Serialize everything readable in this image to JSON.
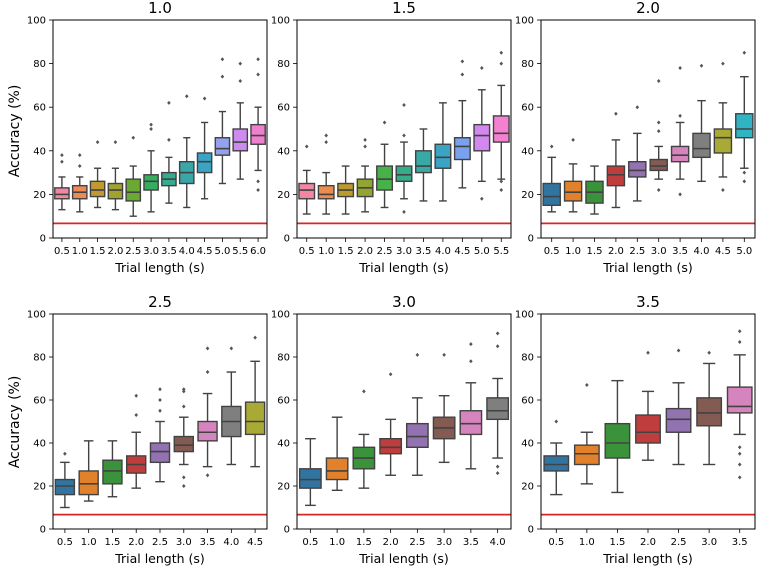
{
  "figure": {
    "ylabel": "Accuracy (%)",
    "xlabel": "Trial length (s)"
  },
  "chart_data": [
    {
      "type": "box",
      "title": "1.0",
      "xlabel": "Trial length (s)",
      "ylabel": "Accuracy (%)",
      "ylim": [
        0,
        100
      ],
      "yticks": [
        "0",
        "20",
        "40",
        "60",
        "80",
        "100"
      ],
      "chance_level": 6.7,
      "categories": [
        "0.5",
        "1.0",
        "1.5",
        "2.0",
        "2.5",
        "3.0",
        "3.5",
        "4.0",
        "4.5",
        "5.0",
        "5.5",
        "6.0"
      ],
      "boxes": [
        {
          "whislo": 13,
          "q1": 18,
          "med": 20,
          "q3": 23,
          "whishi": 28,
          "fliers": [
            35,
            38
          ]
        },
        {
          "whislo": 12,
          "q1": 18,
          "med": 21,
          "q3": 24,
          "whishi": 28,
          "fliers": [
            33,
            38
          ]
        },
        {
          "whislo": 14,
          "q1": 19,
          "med": 22,
          "q3": 26,
          "whishi": 32,
          "fliers": [
            44
          ]
        },
        {
          "whislo": 13,
          "q1": 18,
          "med": 22,
          "q3": 25,
          "whishi": 32,
          "fliers": [
            44
          ]
        },
        {
          "whislo": 10,
          "q1": 17,
          "med": 21,
          "q3": 27,
          "whishi": 33,
          "fliers": [
            46
          ]
        },
        {
          "whislo": 12,
          "q1": 22,
          "med": 26,
          "q3": 29,
          "whishi": 40,
          "fliers": [
            50,
            52
          ]
        },
        {
          "whislo": 16,
          "q1": 24,
          "med": 27,
          "q3": 30,
          "whishi": 37,
          "fliers": [
            45,
            62
          ]
        },
        {
          "whislo": 14,
          "q1": 25,
          "med": 30,
          "q3": 35,
          "whishi": 46,
          "fliers": [
            65
          ]
        },
        {
          "whislo": 18,
          "q1": 30,
          "med": 35,
          "q3": 39,
          "whishi": 53,
          "fliers": [
            64
          ]
        },
        {
          "whislo": 25,
          "q1": 38,
          "med": 41,
          "q3": 46,
          "whishi": 58,
          "fliers": [
            74,
            82
          ]
        },
        {
          "whislo": 27,
          "q1": 40,
          "med": 44,
          "q3": 50,
          "whishi": 62,
          "fliers": [
            72,
            80
          ]
        },
        {
          "whislo": 31,
          "q1": 43,
          "med": 47,
          "q3": 52,
          "whishi": 60,
          "fliers": [
            22,
            26,
            75,
            82
          ]
        }
      ]
    },
    {
      "type": "box",
      "title": "1.5",
      "xlabel": "Trial length (s)",
      "ylabel": "",
      "ylim": [
        0,
        100
      ],
      "yticks": [
        "0",
        "20",
        "40",
        "60",
        "80",
        "100"
      ],
      "chance_level": 6.7,
      "categories": [
        "0.5",
        "1.0",
        "1.5",
        "2.0",
        "2.5",
        "3.0",
        "3.5",
        "4.0",
        "4.5",
        "5.0",
        "5.5"
      ],
      "boxes": [
        {
          "whislo": 11,
          "q1": 18,
          "med": 22,
          "q3": 25,
          "whishi": 31,
          "fliers": [
            42
          ]
        },
        {
          "whislo": 11,
          "q1": 18,
          "med": 20,
          "q3": 24,
          "whishi": 30,
          "fliers": [
            44,
            47
          ]
        },
        {
          "whislo": 11,
          "q1": 19,
          "med": 22,
          "q3": 25,
          "whishi": 33,
          "fliers": []
        },
        {
          "whislo": 12,
          "q1": 19,
          "med": 23,
          "q3": 27,
          "whishi": 33,
          "fliers": [
            42,
            45
          ]
        },
        {
          "whislo": 14,
          "q1": 22,
          "med": 27,
          "q3": 33,
          "whishi": 43,
          "fliers": [
            53
          ]
        },
        {
          "whislo": 18,
          "q1": 26,
          "med": 29,
          "q3": 33,
          "whishi": 44,
          "fliers": [
            12,
            47,
            61
          ]
        },
        {
          "whislo": 17,
          "q1": 30,
          "med": 33,
          "q3": 40,
          "whishi": 50,
          "fliers": []
        },
        {
          "whislo": 17,
          "q1": 32,
          "med": 37,
          "q3": 43,
          "whishi": 62,
          "fliers": []
        },
        {
          "whislo": 23,
          "q1": 36,
          "med": 42,
          "q3": 46,
          "whishi": 63,
          "fliers": [
            75,
            81
          ]
        },
        {
          "whislo": 26,
          "q1": 40,
          "med": 47,
          "q3": 52,
          "whishi": 68,
          "fliers": [
            18,
            78
          ]
        },
        {
          "whislo": 27,
          "q1": 44,
          "med": 48,
          "q3": 56,
          "whishi": 70,
          "fliers": [
            22,
            26,
            80,
            85
          ]
        }
      ]
    },
    {
      "type": "box",
      "title": "2.0",
      "xlabel": "Trial length (s)",
      "ylabel": "",
      "ylim": [
        0,
        100
      ],
      "yticks": [
        "0",
        "20",
        "40",
        "60",
        "80",
        "100"
      ],
      "chance_level": 6.7,
      "categories": [
        "0.5",
        "1.0",
        "1.5",
        "2.0",
        "2.5",
        "3.0",
        "3.5",
        "4.0",
        "4.5",
        "5.0"
      ],
      "boxes": [
        {
          "whislo": 12,
          "q1": 15,
          "med": 19,
          "q3": 25,
          "whishi": 37,
          "fliers": [
            42
          ]
        },
        {
          "whislo": 12,
          "q1": 17,
          "med": 21,
          "q3": 26,
          "whishi": 34,
          "fliers": [
            45
          ]
        },
        {
          "whislo": 11,
          "q1": 16,
          "med": 21,
          "q3": 26,
          "whishi": 33,
          "fliers": []
        },
        {
          "whislo": 14,
          "q1": 24,
          "med": 29,
          "q3": 33,
          "whishi": 45,
          "fliers": [
            57
          ]
        },
        {
          "whislo": 17,
          "q1": 28,
          "med": 31,
          "q3": 35,
          "whishi": 48,
          "fliers": [
            60
          ]
        },
        {
          "whislo": 27,
          "q1": 31,
          "med": 33,
          "q3": 36,
          "whishi": 42,
          "fliers": [
            22,
            49,
            53,
            72
          ]
        },
        {
          "whislo": 27,
          "q1": 35,
          "med": 38,
          "q3": 42,
          "whishi": 53,
          "fliers": [
            20,
            56,
            78
          ]
        },
        {
          "whislo": 26,
          "q1": 37,
          "med": 41,
          "q3": 48,
          "whishi": 63,
          "fliers": [
            79
          ]
        },
        {
          "whislo": 28,
          "q1": 39,
          "med": 46,
          "q3": 50,
          "whishi": 62,
          "fliers": [
            22,
            80
          ]
        },
        {
          "whislo": 32,
          "q1": 46,
          "med": 50,
          "q3": 57,
          "whishi": 74,
          "fliers": [
            26,
            30,
            85
          ]
        }
      ]
    },
    {
      "type": "box",
      "title": "2.5",
      "xlabel": "Trial length (s)",
      "ylabel": "Accuracy (%)",
      "ylim": [
        0,
        100
      ],
      "yticks": [
        "0",
        "20",
        "40",
        "60",
        "80",
        "100"
      ],
      "chance_level": 6.7,
      "categories": [
        "0.5",
        "1.0",
        "1.5",
        "2.0",
        "2.5",
        "3.0",
        "3.5",
        "4.0",
        "4.5"
      ],
      "boxes": [
        {
          "whislo": 10,
          "q1": 16,
          "med": 20,
          "q3": 23,
          "whishi": 31,
          "fliers": [
            35
          ]
        },
        {
          "whislo": 13,
          "q1": 16,
          "med": 21,
          "q3": 27,
          "whishi": 41,
          "fliers": []
        },
        {
          "whislo": 15,
          "q1": 21,
          "med": 27,
          "q3": 32,
          "whishi": 41,
          "fliers": []
        },
        {
          "whislo": 19,
          "q1": 26,
          "med": 30,
          "q3": 34,
          "whishi": 45,
          "fliers": [
            53,
            62
          ]
        },
        {
          "whislo": 22,
          "q1": 31,
          "med": 36,
          "q3": 40,
          "whishi": 50,
          "fliers": [
            55,
            60,
            65
          ]
        },
        {
          "whislo": 30,
          "q1": 36,
          "med": 39,
          "q3": 43,
          "whishi": 52,
          "fliers": [
            20,
            24,
            57,
            64,
            65
          ]
        },
        {
          "whislo": 29,
          "q1": 41,
          "med": 45,
          "q3": 50,
          "whishi": 63,
          "fliers": [
            25,
            73,
            84
          ]
        },
        {
          "whislo": 30,
          "q1": 43,
          "med": 50,
          "q3": 57,
          "whishi": 73,
          "fliers": [
            84
          ]
        },
        {
          "whislo": 29,
          "q1": 44,
          "med": 50,
          "q3": 59,
          "whishi": 78,
          "fliers": [
            89
          ]
        }
      ]
    },
    {
      "type": "box",
      "title": "3.0",
      "xlabel": "Trial length (s)",
      "ylabel": "",
      "ylim": [
        0,
        100
      ],
      "yticks": [
        "0",
        "20",
        "40",
        "60",
        "80",
        "100"
      ],
      "chance_level": 6.7,
      "categories": [
        "0.5",
        "1.0",
        "1.5",
        "2.0",
        "2.5",
        "3.0",
        "3.5",
        "4.0"
      ],
      "boxes": [
        {
          "whislo": 11,
          "q1": 19,
          "med": 23,
          "q3": 28,
          "whishi": 42,
          "fliers": []
        },
        {
          "whislo": 18,
          "q1": 23,
          "med": 27,
          "q3": 33,
          "whishi": 52,
          "fliers": []
        },
        {
          "whislo": 19,
          "q1": 28,
          "med": 33,
          "q3": 38,
          "whishi": 44,
          "fliers": [
            64
          ]
        },
        {
          "whislo": 25,
          "q1": 35,
          "med": 38,
          "q3": 42,
          "whishi": 51,
          "fliers": [
            72
          ]
        },
        {
          "whislo": 25,
          "q1": 38,
          "med": 43,
          "q3": 49,
          "whishi": 61,
          "fliers": [
            81
          ]
        },
        {
          "whislo": 31,
          "q1": 42,
          "med": 47,
          "q3": 52,
          "whishi": 62,
          "fliers": [
            81
          ]
        },
        {
          "whislo": 28,
          "q1": 44,
          "med": 49,
          "q3": 55,
          "whishi": 68,
          "fliers": [
            78,
            86
          ]
        },
        {
          "whislo": 33,
          "q1": 51,
          "med": 55,
          "q3": 61,
          "whishi": 70,
          "fliers": [
            26,
            29,
            85,
            91
          ]
        }
      ]
    },
    {
      "type": "box",
      "title": "3.5",
      "xlabel": "Trial length (s)",
      "ylabel": "",
      "ylim": [
        0,
        100
      ],
      "yticks": [
        "0",
        "20",
        "40",
        "60",
        "80",
        "100"
      ],
      "chance_level": 6.7,
      "categories": [
        "0.5",
        "1.0",
        "1.5",
        "2.0",
        "2.5",
        "3.0",
        "3.5"
      ],
      "boxes": [
        {
          "whislo": 16,
          "q1": 27,
          "med": 30,
          "q3": 34,
          "whishi": 40,
          "fliers": [
            50
          ]
        },
        {
          "whislo": 21,
          "q1": 30,
          "med": 35,
          "q3": 39,
          "whishi": 45,
          "fliers": [
            67
          ]
        },
        {
          "whislo": 17,
          "q1": 33,
          "med": 40,
          "q3": 49,
          "whishi": 69,
          "fliers": []
        },
        {
          "whislo": 32,
          "q1": 40,
          "med": 45,
          "q3": 53,
          "whishi": 64,
          "fliers": [
            82
          ]
        },
        {
          "whislo": 30,
          "q1": 45,
          "med": 51,
          "q3": 56,
          "whishi": 68,
          "fliers": [
            83
          ]
        },
        {
          "whislo": 30,
          "q1": 48,
          "med": 54,
          "q3": 61,
          "whishi": 77,
          "fliers": [
            82
          ]
        },
        {
          "whislo": 44,
          "q1": 54,
          "med": 57,
          "q3": 66,
          "whishi": 81,
          "fliers": [
            24,
            30,
            35,
            38,
            87,
            92
          ]
        }
      ]
    }
  ],
  "colors": {
    "palette_12": [
      "#f187a3",
      "#ee8b55",
      "#c09a31",
      "#a0a232",
      "#6aaa34",
      "#36ae5f",
      "#38aa8e",
      "#39a7a7",
      "#3ba3c3",
      "#94a1ed",
      "#cb8cee",
      "#ee80cd"
    ],
    "palette_11": [
      "#f187a3",
      "#ec8c4d",
      "#bc9b2e",
      "#94a431",
      "#47b14a",
      "#36ad8a",
      "#38a9a5",
      "#3ba3c4",
      "#79a1ee",
      "#d288ee",
      "#f480d1"
    ],
    "palette_10": [
      "#3274a1",
      "#e1812c",
      "#3a923a",
      "#c03d3e",
      "#9372b2",
      "#845b53",
      "#d684bd",
      "#7f7f7f",
      "#a9aa35",
      "#2eb4c3"
    ],
    "palette_9": [
      "#3274a1",
      "#e1812c",
      "#3a923a",
      "#c03d3e",
      "#9372b2",
      "#845b53",
      "#d684bd",
      "#7f7f7f",
      "#a9aa35"
    ],
    "palette_8": [
      "#3274a1",
      "#e1812c",
      "#3a923a",
      "#c03d3e",
      "#9372b2",
      "#845b53",
      "#d684bd",
      "#7f7f7f"
    ],
    "palette_7": [
      "#3274a1",
      "#e1812c",
      "#3a923a",
      "#c03d3e",
      "#9372b2",
      "#845b53",
      "#d684bd"
    ],
    "chance_line": "#d62728",
    "whisker": "#424242"
  }
}
